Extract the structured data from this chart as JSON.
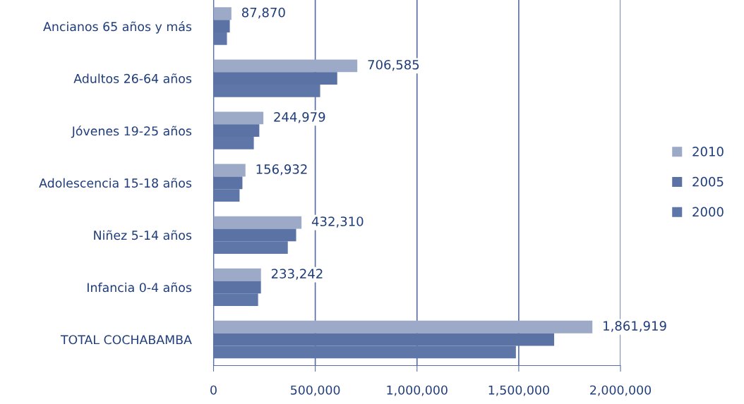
{
  "chart_data": {
    "type": "bar",
    "orientation": "horizontal",
    "categories": [
      "Ancianos 65 años y más",
      "Adultos 26-64 años",
      "Jóvenes 19-25 años",
      "Adolescencia 15-18 años",
      "Niñez 5-14 años",
      "Infancia 0-4 años",
      "TOTAL COCHABAMBA"
    ],
    "series": [
      {
        "name": "2010",
        "color": "#9caac8",
        "values": [
          87870,
          706585,
          244979,
          156932,
          432310,
          233242,
          1861919
        ],
        "value_labels": [
          "87,870",
          "706,585",
          "244,979",
          "156,932",
          "432,310",
          "233,242",
          "1,861,919"
        ]
      },
      {
        "name": "2005",
        "color": "#5a72a4",
        "values": [
          80000,
          608000,
          225000,
          142000,
          406000,
          233000,
          1674000
        ]
      },
      {
        "name": "2000",
        "color": "#5e76a8",
        "values": [
          66000,
          524000,
          198000,
          128000,
          365000,
          219000,
          1486000
        ]
      }
    ],
    "xlim": [
      0,
      2000000
    ],
    "xticks": [
      0,
      {
        "value": 500000,
        "label": "500,000"
      },
      {
        "value": 1000000,
        "label": "1,000,000"
      },
      {
        "value": 1500000,
        "label": "1,500,000"
      },
      {
        "value": 2000000,
        "label": "2,000,000"
      }
    ],
    "grid": "x",
    "legend": "right"
  }
}
